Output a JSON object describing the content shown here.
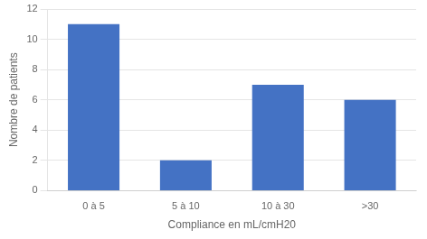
{
  "chart_data": {
    "type": "bar",
    "categories": [
      "0 à 5",
      "5 à 10",
      "10 à 30",
      ">30"
    ],
    "values": [
      11,
      2,
      7,
      6
    ],
    "color": "#4472c4",
    "xlabel": "Compliance en mL/cmH20",
    "ylabel": "Nombre de patients",
    "ylim": [
      0,
      12
    ],
    "yticks": [
      0,
      2,
      4,
      6,
      8,
      10,
      12
    ],
    "grid": true
  }
}
